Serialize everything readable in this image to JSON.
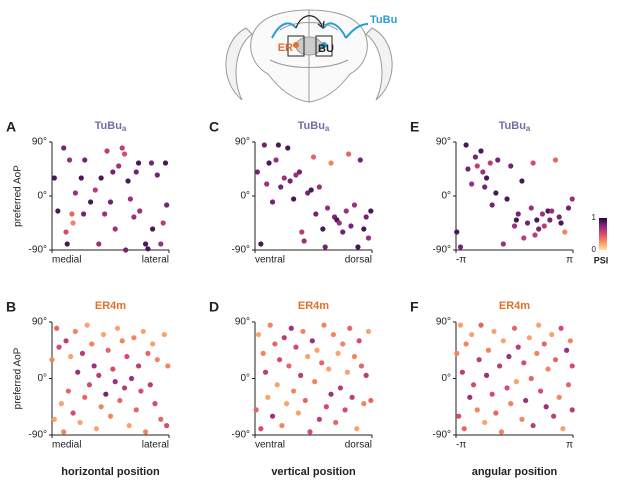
{
  "diagram": {
    "er": "ER",
    "bu": "BU",
    "tubu": "TuBu"
  },
  "colorbar": {
    "label": "PSI",
    "lim": [
      0,
      1
    ],
    "ticks": [
      0,
      1
    ],
    "colors": [
      "#fde0a8",
      "#f8935e",
      "#d94a6a",
      "#8c2981",
      "#1a0c3c"
    ]
  },
  "chart_data": [
    {
      "type": "scatter",
      "panel": "A",
      "title": "TuBu",
      "title_sub": "a",
      "title_color": "#7a6aaa",
      "ylabel": "preferred AoP",
      "xlim": [
        0,
        1
      ],
      "xticks": [
        {
          "value": 0,
          "label": "medial"
        },
        {
          "value": 1,
          "label": "lateral"
        }
      ],
      "ylim": [
        -90,
        90
      ],
      "yticks": [
        {
          "value": -90,
          "label": "-90°"
        },
        {
          "value": 0,
          "label": "0°"
        },
        {
          "value": 90,
          "label": "90°"
        }
      ],
      "x": [
        0.02,
        0.05,
        0.1,
        0.12,
        0.13,
        0.15,
        0.17,
        0.18,
        0.2,
        0.25,
        0.27,
        0.28,
        0.33,
        0.37,
        0.4,
        0.42,
        0.45,
        0.47,
        0.5,
        0.52,
        0.54,
        0.57,
        0.6,
        0.62,
        0.63,
        0.65,
        0.67,
        0.7,
        0.72,
        0.74,
        0.75,
        0.8,
        0.82,
        0.85,
        0.86,
        0.9,
        0.93,
        0.95,
        0.97,
        0.98
      ],
      "values": [
        30,
        -25,
        80,
        -60,
        -80,
        60,
        -30,
        -45,
        5,
        30,
        -30,
        60,
        -10,
        10,
        -80,
        30,
        -30,
        75,
        -10,
        40,
        -55,
        50,
        80,
        70,
        -90,
        25,
        -5,
        -35,
        40,
        55,
        -25,
        -80,
        -88,
        55,
        -55,
        35,
        -80,
        -45,
        55,
        -15
      ],
      "psi": [
        0.9,
        0.9,
        0.8,
        0.5,
        0.9,
        0.7,
        0.4,
        0.3,
        0.7,
        0.9,
        0.8,
        0.8,
        0.9,
        0.6,
        0.7,
        0.9,
        0.7,
        0.6,
        0.8,
        0.8,
        0.7,
        0.7,
        0.6,
        0.5,
        0.8,
        0.9,
        0.7,
        0.7,
        0.8,
        0.9,
        0.7,
        0.9,
        0.9,
        0.8,
        0.9,
        0.8,
        0.7,
        0.6,
        0.9,
        0.8
      ]
    },
    {
      "type": "scatter",
      "panel": "C",
      "title": "TuBu",
      "title_sub": "a",
      "title_color": "#7a6aaa",
      "xlim": [
        0,
        1
      ],
      "xticks": [
        {
          "value": 0,
          "label": "ventral"
        },
        {
          "value": 1,
          "label": "dorsal"
        }
      ],
      "ylim": [
        -90,
        90
      ],
      "yticks": [
        {
          "value": -90,
          "label": "-90°"
        },
        {
          "value": 0,
          "label": "0°"
        },
        {
          "value": 90,
          "label": "90°"
        }
      ],
      "x": [
        0.02,
        0.05,
        0.08,
        0.1,
        0.12,
        0.15,
        0.18,
        0.2,
        0.22,
        0.25,
        0.28,
        0.3,
        0.33,
        0.35,
        0.38,
        0.4,
        0.42,
        0.45,
        0.48,
        0.5,
        0.52,
        0.55,
        0.58,
        0.6,
        0.62,
        0.65,
        0.68,
        0.7,
        0.72,
        0.75,
        0.78,
        0.8,
        0.82,
        0.85,
        0.88,
        0.9,
        0.93,
        0.95,
        0.97,
        0.99
      ],
      "values": [
        40,
        -80,
        85,
        20,
        55,
        -10,
        60,
        85,
        15,
        30,
        80,
        25,
        -5,
        35,
        40,
        -60,
        -75,
        5,
        10,
        65,
        -30,
        15,
        -55,
        -85,
        -20,
        55,
        -35,
        -40,
        -45,
        -60,
        -25,
        70,
        -50,
        -15,
        -85,
        60,
        -55,
        -35,
        -70,
        -25
      ],
      "psi": [
        0.8,
        0.9,
        0.8,
        0.7,
        0.9,
        0.8,
        0.7,
        0.9,
        0.8,
        0.7,
        0.9,
        0.8,
        0.9,
        0.7,
        0.8,
        0.6,
        0.7,
        0.8,
        0.9,
        0.4,
        0.8,
        0.7,
        0.9,
        0.8,
        0.7,
        0.3,
        0.8,
        0.9,
        0.7,
        0.8,
        0.7,
        0.4,
        0.8,
        0.7,
        0.9,
        0.8,
        0.9,
        0.8,
        0.7,
        0.9
      ]
    },
    {
      "type": "scatter",
      "panel": "E",
      "title": "TuBu",
      "title_sub": "a",
      "title_color": "#7a6aaa",
      "xlim": [
        -3.1416,
        3.1416
      ],
      "xticks": [
        {
          "value": -3.1416,
          "label": "-π"
        },
        {
          "value": 3.1416,
          "label": "π"
        }
      ],
      "ylim": [
        -90,
        90
      ],
      "yticks": [
        {
          "value": -90,
          "label": "-90°"
        },
        {
          "value": 0,
          "label": "0°"
        },
        {
          "value": 90,
          "label": "90°"
        }
      ],
      "x": [
        -3.1,
        -2.9,
        -2.6,
        -2.3,
        -2.1,
        -2.0,
        -1.8,
        -1.7,
        -1.6,
        -1.5,
        -1.3,
        -1.2,
        -1.0,
        -0.9,
        -0.6,
        -0.4,
        -0.2,
        0,
        0.2,
        0.4,
        0.5,
        0.7,
        0.9,
        1.0,
        1.2,
        1.3,
        1.5,
        1.6,
        1.8,
        1.9,
        2.0,
        2.2,
        2.4,
        2.5,
        2.7,
        2.9,
        3.1,
        -2.5,
        0.1,
        1.1
      ],
      "values": [
        -60,
        -85,
        85,
        20,
        65,
        50,
        75,
        40,
        15,
        30,
        55,
        -15,
        5,
        60,
        -80,
        -5,
        50,
        -50,
        -30,
        25,
        -70,
        -45,
        -20,
        55,
        -40,
        -55,
        -30,
        -50,
        -25,
        -40,
        -25,
        60,
        -35,
        -45,
        -60,
        -20,
        -5,
        45,
        -40,
        -65
      ],
      "psi": [
        0.9,
        0.8,
        0.9,
        0.7,
        0.8,
        0.6,
        0.9,
        0.7,
        0.8,
        0.9,
        0.6,
        0.8,
        0.9,
        0.8,
        0.7,
        0.9,
        0.8,
        0.7,
        0.8,
        0.9,
        0.6,
        0.8,
        0.7,
        0.5,
        0.9,
        0.8,
        0.7,
        0.6,
        0.9,
        0.8,
        0.7,
        0.4,
        0.8,
        0.9,
        0.3,
        0.8,
        0.7,
        0.8,
        0.9,
        0.6
      ]
    },
    {
      "type": "scatter",
      "panel": "B",
      "title": "ER4m",
      "title_color": "#e0702a",
      "ylabel": "preferred AoP",
      "xlabel": "horizontal position",
      "xlim": [
        0,
        1
      ],
      "xticks": [
        {
          "value": 0,
          "label": "medial"
        },
        {
          "value": 1,
          "label": "lateral"
        }
      ],
      "ylim": [
        -90,
        90
      ],
      "yticks": [
        {
          "value": -90,
          "label": "-90°"
        },
        {
          "value": 0,
          "label": "0°"
        },
        {
          "value": 90,
          "label": "90°"
        }
      ],
      "x": [
        0,
        0.02,
        0.04,
        0.06,
        0.08,
        0.1,
        0.12,
        0.14,
        0.16,
        0.18,
        0.2,
        0.22,
        0.24,
        0.26,
        0.28,
        0.3,
        0.32,
        0.34,
        0.36,
        0.38,
        0.4,
        0.42,
        0.44,
        0.46,
        0.48,
        0.5,
        0.52,
        0.54,
        0.56,
        0.58,
        0.6,
        0.62,
        0.64,
        0.66,
        0.68,
        0.7,
        0.72,
        0.74,
        0.76,
        0.78,
        0.8,
        0.82,
        0.84,
        0.86,
        0.88,
        0.9,
        0.93,
        0.96,
        0.98,
        0.99
      ],
      "values": [
        30,
        -65,
        80,
        50,
        -40,
        -85,
        60,
        -20,
        35,
        -55,
        75,
        10,
        -70,
        40,
        -30,
        85,
        -10,
        55,
        20,
        -80,
        5,
        -45,
        70,
        -25,
        45,
        -60,
        15,
        -5,
        80,
        -35,
        60,
        -15,
        35,
        -75,
        0,
        65,
        -50,
        20,
        -20,
        75,
        -85,
        40,
        -10,
        55,
        -40,
        30,
        -65,
        70,
        -75,
        20
      ],
      "psi": [
        0.3,
        0.2,
        0.4,
        0.5,
        0.2,
        0.3,
        0.6,
        0.4,
        0.2,
        0.5,
        0.3,
        0.7,
        0.2,
        0.6,
        0.4,
        0.2,
        0.5,
        0.3,
        0.7,
        0.2,
        0.6,
        0.3,
        0.2,
        0.8,
        0.4,
        0.3,
        0.5,
        0.7,
        0.2,
        0.4,
        0.3,
        0.6,
        0.5,
        0.2,
        0.7,
        0.3,
        0.4,
        0.6,
        0.5,
        0.2,
        0.3,
        0.4,
        0.6,
        0.2,
        0.5,
        0.3,
        0.4,
        0.2,
        0.5,
        0.3
      ]
    },
    {
      "type": "scatter",
      "panel": "D",
      "title": "ER4m",
      "title_color": "#e0702a",
      "xlabel": "vertical position",
      "xlim": [
        0,
        1
      ],
      "xticks": [
        {
          "value": 0,
          "label": "ventral"
        },
        {
          "value": 1,
          "label": "dorsal"
        }
      ],
      "ylim": [
        -90,
        90
      ],
      "yticks": [
        {
          "value": -90,
          "label": "-90°"
        },
        {
          "value": 0,
          "label": "0°"
        },
        {
          "value": 90,
          "label": "90°"
        }
      ],
      "x": [
        0.01,
        0.03,
        0.05,
        0.07,
        0.09,
        0.11,
        0.13,
        0.15,
        0.17,
        0.19,
        0.21,
        0.23,
        0.25,
        0.27,
        0.29,
        0.31,
        0.33,
        0.35,
        0.37,
        0.39,
        0.41,
        0.43,
        0.45,
        0.47,
        0.49,
        0.51,
        0.53,
        0.55,
        0.57,
        0.59,
        0.61,
        0.63,
        0.65,
        0.67,
        0.69,
        0.71,
        0.73,
        0.75,
        0.77,
        0.79,
        0.81,
        0.83,
        0.85,
        0.87,
        0.89,
        0.91,
        0.93,
        0.95,
        0.97,
        0.99
      ],
      "values": [
        -50,
        70,
        -80,
        40,
        10,
        -30,
        85,
        -60,
        55,
        -10,
        30,
        -75,
        65,
        -40,
        20,
        80,
        -20,
        50,
        -55,
        5,
        75,
        -35,
        35,
        -85,
        60,
        -5,
        45,
        -65,
        25,
        85,
        -45,
        15,
        -25,
        70,
        -70,
        40,
        -15,
        55,
        -50,
        10,
        80,
        -30,
        35,
        -80,
        60,
        20,
        -40,
        5,
        75,
        -35
      ],
      "psi": [
        0.4,
        0.2,
        0.5,
        0.3,
        0.6,
        0.2,
        0.3,
        0.7,
        0.4,
        0.2,
        0.5,
        0.3,
        0.6,
        0.2,
        0.4,
        0.7,
        0.3,
        0.5,
        0.2,
        0.6,
        0.3,
        0.4,
        0.2,
        0.5,
        0.7,
        0.3,
        0.2,
        0.6,
        0.4,
        0.3,
        0.5,
        0.2,
        0.7,
        0.3,
        0.4,
        0.2,
        0.6,
        0.3,
        0.5,
        0.2,
        0.4,
        0.6,
        0.3,
        0.2,
        0.5,
        0.4,
        0.3,
        0.6,
        0.2,
        0.4
      ]
    },
    {
      "type": "scatter",
      "panel": "F",
      "title": "ER4m",
      "title_color": "#e0702a",
      "xlabel": "angular position",
      "xlim": [
        -3.1416,
        3.1416
      ],
      "xticks": [
        {
          "value": -3.1416,
          "label": "-π"
        },
        {
          "value": 3.1416,
          "label": "π"
        }
      ],
      "ylim": [
        -90,
        90
      ],
      "yticks": [
        {
          "value": -90,
          "label": "-90°"
        },
        {
          "value": 0,
          "label": "0°"
        },
        {
          "value": 90,
          "label": "90°"
        }
      ],
      "x": [
        -3.1,
        -3.0,
        -2.9,
        -2.8,
        -2.7,
        -2.6,
        -2.4,
        -2.3,
        -2.2,
        -2.0,
        -1.9,
        -1.8,
        -1.6,
        -1.5,
        -1.4,
        -1.2,
        -1.1,
        -1.0,
        -0.8,
        -0.7,
        -0.6,
        -0.4,
        -0.3,
        -0.2,
        0,
        0.1,
        0.2,
        0.4,
        0.5,
        0.6,
        0.8,
        0.9,
        1.0,
        1.2,
        1.3,
        1.4,
        1.6,
        1.7,
        1.8,
        2.0,
        2.1,
        2.2,
        2.4,
        2.5,
        2.6,
        2.8,
        2.9,
        3.0,
        3.1,
        3.1
      ],
      "values": [
        40,
        -60,
        85,
        10,
        -80,
        55,
        -30,
        70,
        -10,
        -50,
        30,
        85,
        -70,
        5,
        45,
        -25,
        75,
        -55,
        20,
        -85,
        60,
        -15,
        35,
        -40,
        80,
        -5,
        50,
        -65,
        25,
        -35,
        65,
        0,
        -75,
        40,
        85,
        -20,
        55,
        -45,
        15,
        70,
        -60,
        30,
        -30,
        80,
        -80,
        45,
        -10,
        60,
        -50,
        20
      ],
      "psi": [
        0.3,
        0.5,
        0.2,
        0.6,
        0.4,
        0.3,
        0.7,
        0.2,
        0.5,
        0.3,
        0.6,
        0.4,
        0.2,
        0.7,
        0.3,
        0.5,
        0.2,
        0.4,
        0.6,
        0.3,
        0.2,
        0.5,
        0.7,
        0.3,
        0.4,
        0.2,
        0.6,
        0.3,
        0.5,
        0.7,
        0.2,
        0.4,
        0.6,
        0.3,
        0.2,
        0.5,
        0.4,
        0.7,
        0.3,
        0.2,
        0.6,
        0.4,
        0.3,
        0.5,
        0.2,
        0.7,
        0.4,
        0.3,
        0.6,
        0.5
      ]
    }
  ]
}
